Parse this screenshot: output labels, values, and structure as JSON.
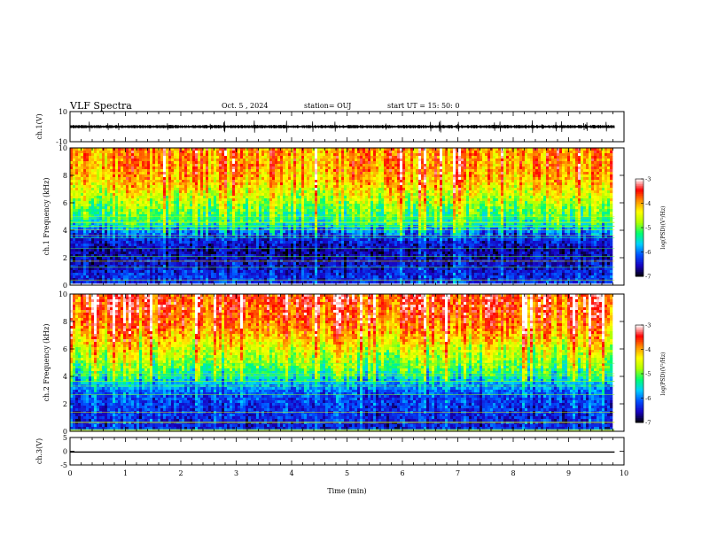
{
  "header": {
    "title": "VLF Spectra",
    "date": "Oct. 5 , 2024",
    "station": "station= OUJ",
    "start": "start  UT =   15: 50: 0"
  },
  "chart_data": [
    {
      "type": "line",
      "panel": "ch1-waveform",
      "ylabel": "ch.1(V)",
      "ylim": [
        -10,
        10
      ],
      "y_ticks": [
        "10",
        "-10"
      ],
      "x_unit": "min",
      "xlim": [
        0,
        10
      ],
      "data_end_x": 9.83,
      "baseline": 0,
      "envelope_approx": [
        -1,
        1
      ],
      "color": "#000000"
    },
    {
      "type": "heatmap",
      "panel": "ch1-spectrogram",
      "ylabel": "ch.1 Frequency (kHz)",
      "ylim": [
        0,
        10
      ],
      "y_ticks": [
        "0",
        "2",
        "4",
        "6",
        "8",
        "10"
      ],
      "xlim": [
        0,
        10
      ],
      "data_end_x": 9.83,
      "colorbar": {
        "label": "log(PSD)(V²/Hz)",
        "range": [
          -7,
          -3
        ],
        "ticks": [
          "-3",
          "-4",
          "-5",
          "-6",
          "-7"
        ],
        "colors": [
          "#000000",
          "#1800c0",
          "#0050ff",
          "#00d0ff",
          "#00ff70",
          "#b0ff00",
          "#ffff00",
          "#ff9000",
          "#ff0000",
          "#ffffff"
        ]
      },
      "approx_log_psd_profile": [
        {
          "f_khz": 0.5,
          "log_psd": -6.3
        },
        {
          "f_khz": 1.5,
          "log_psd": -6.5
        },
        {
          "f_khz": 2.5,
          "log_psd": -6.6
        },
        {
          "f_khz": 3.5,
          "log_psd": -6.2
        },
        {
          "f_khz": 4.5,
          "log_psd": -5.3
        },
        {
          "f_khz": 5.5,
          "log_psd": -4.9
        },
        {
          "f_khz": 6.5,
          "log_psd": -4.5
        },
        {
          "f_khz": 7.5,
          "log_psd": -4.1
        },
        {
          "f_khz": 8.5,
          "log_psd": -3.9
        },
        {
          "f_khz": 9.5,
          "log_psd": -3.9
        }
      ]
    },
    {
      "type": "heatmap",
      "panel": "ch2-spectrogram",
      "ylabel": "ch.2 Frequency (kHz)",
      "ylim": [
        0,
        10
      ],
      "y_ticks": [
        "0",
        "2",
        "4",
        "6",
        "8",
        "10"
      ],
      "xlim": [
        0,
        10
      ],
      "data_end_x": 9.83,
      "colorbar": {
        "label": "log(PSD)(V²/Hz)",
        "range": [
          -7,
          -3
        ],
        "ticks": [
          "-3",
          "-4",
          "-5",
          "-6",
          "-7"
        ],
        "colors": [
          "#000000",
          "#1800c0",
          "#0050ff",
          "#00d0ff",
          "#00ff70",
          "#b0ff00",
          "#ffff00",
          "#ff9000",
          "#ff0000",
          "#ffffff"
        ]
      },
      "approx_log_psd_profile": [
        {
          "f_khz": 0.5,
          "log_psd": -6.4
        },
        {
          "f_khz": 1.5,
          "log_psd": -6.3
        },
        {
          "f_khz": 2.5,
          "log_psd": -6.2
        },
        {
          "f_khz": 3.5,
          "log_psd": -5.7
        },
        {
          "f_khz": 4.5,
          "log_psd": -5.1
        },
        {
          "f_khz": 5.5,
          "log_psd": -4.7
        },
        {
          "f_khz": 6.5,
          "log_psd": -4.3
        },
        {
          "f_khz": 7.5,
          "log_psd": -3.9
        },
        {
          "f_khz": 8.5,
          "log_psd": -3.7
        },
        {
          "f_khz": 9.5,
          "log_psd": -3.6
        }
      ]
    },
    {
      "type": "line",
      "panel": "ch3-waveform",
      "ylabel": "ch.3(V)",
      "ylim": [
        -5,
        5
      ],
      "y_ticks": [
        "5",
        "0",
        "-5"
      ],
      "xlim": [
        0,
        10
      ],
      "data_end_x": 9.83,
      "x": [
        0,
        9.83
      ],
      "y": [
        -0.3,
        -0.3
      ],
      "color": "#000000"
    }
  ],
  "x_axis": {
    "label": "Time (min)",
    "ticks": [
      "0",
      "1",
      "2",
      "3",
      "4",
      "5",
      "6",
      "7",
      "8",
      "9",
      "10"
    ]
  }
}
